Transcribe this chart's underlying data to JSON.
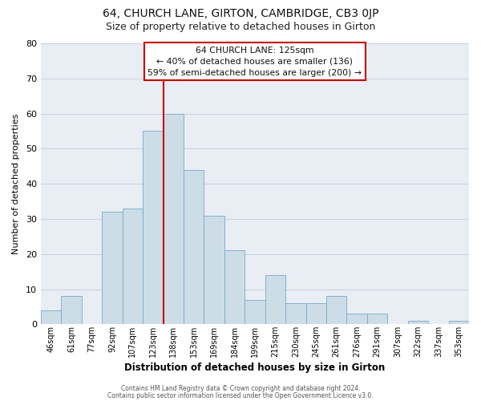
{
  "title": "64, CHURCH LANE, GIRTON, CAMBRIDGE, CB3 0JP",
  "subtitle": "Size of property relative to detached houses in Girton",
  "xlabel": "Distribution of detached houses by size in Girton",
  "ylabel": "Number of detached properties",
  "bar_color": "#ccdde8",
  "bar_edge_color": "#7aaac8",
  "plot_bg_color": "#e8eef4",
  "categories": [
    "46sqm",
    "61sqm",
    "77sqm",
    "92sqm",
    "107sqm",
    "123sqm",
    "138sqm",
    "153sqm",
    "169sqm",
    "184sqm",
    "199sqm",
    "215sqm",
    "230sqm",
    "245sqm",
    "261sqm",
    "276sqm",
    "291sqm",
    "307sqm",
    "322sqm",
    "337sqm",
    "353sqm"
  ],
  "values": [
    4,
    8,
    0,
    32,
    33,
    55,
    60,
    44,
    31,
    21,
    7,
    14,
    6,
    6,
    8,
    3,
    3,
    0,
    1,
    0,
    1
  ],
  "vline_index": 6,
  "vline_color": "#cc0000",
  "ylim": [
    0,
    80
  ],
  "yticks": [
    0,
    10,
    20,
    30,
    40,
    50,
    60,
    70,
    80
  ],
  "annotation_title": "64 CHURCH LANE: 125sqm",
  "annotation_line1": "← 40% of detached houses are smaller (136)",
  "annotation_line2": "59% of semi-detached houses are larger (200) →",
  "footer1": "Contains HM Land Registry data © Crown copyright and database right 2024.",
  "footer2": "Contains public sector information licensed under the Open Government Licence v3.0.",
  "background_color": "#ffffff",
  "grid_color": "#c0ccd8"
}
